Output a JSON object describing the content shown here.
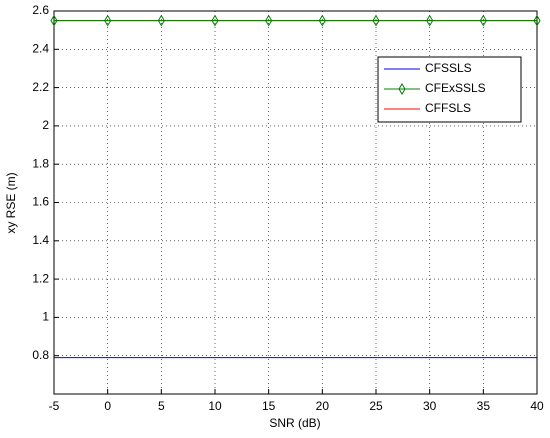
{
  "chart_data": {
    "type": "line",
    "xlabel": "SNR (dB)",
    "ylabel": "xy RSE (m)",
    "x": [
      -5,
      0,
      5,
      10,
      15,
      20,
      25,
      30,
      35,
      40
    ],
    "series": [
      {
        "name": "CFSSLS",
        "color": "#0000ff",
        "values": [
          0.79,
          0.79,
          0.79,
          0.79,
          0.79,
          0.79,
          0.79,
          0.79,
          0.79,
          0.79
        ]
      },
      {
        "name": "CFExSSLS",
        "color": "#008000",
        "marker": "diamond",
        "values": [
          2.55,
          2.55,
          2.55,
          2.55,
          2.55,
          2.55,
          2.55,
          2.55,
          2.55,
          2.55
        ]
      },
      {
        "name": "CFFSLS",
        "color": "#ff0000",
        "values": [
          2.55,
          2.55,
          2.55,
          2.55,
          2.55,
          2.55,
          2.55,
          2.55,
          2.55,
          2.55
        ]
      }
    ],
    "xlim": [
      -5,
      40
    ],
    "xticks": [
      -5,
      0,
      5,
      10,
      15,
      20,
      25,
      30,
      35,
      40
    ],
    "ylim": [
      0.6,
      2.6
    ],
    "yticks": [
      0.8,
      1,
      1.2,
      1.4,
      1.6,
      1.8,
      2,
      2.2,
      2.4,
      2.6
    ],
    "grid": true,
    "legend": "upper right"
  }
}
